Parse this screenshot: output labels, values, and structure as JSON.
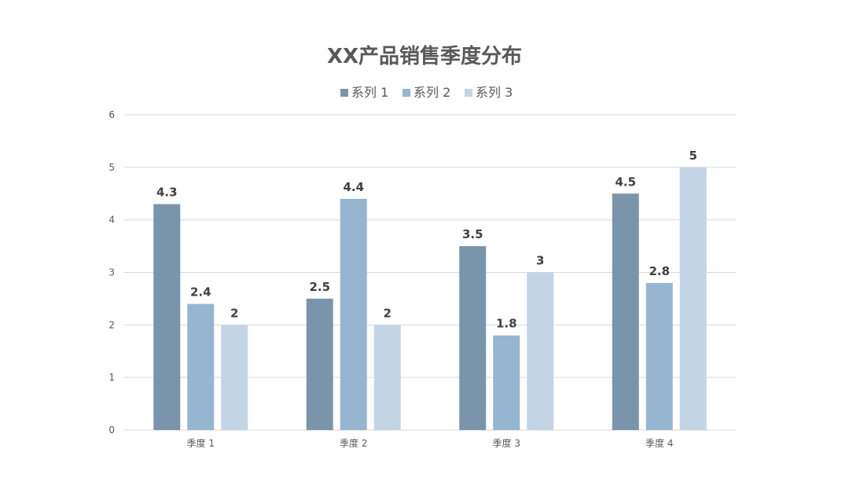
{
  "chart_data": {
    "type": "bar",
    "title": "XX产品销售季度分布",
    "categories": [
      "季度 1",
      "季度 2",
      "季度 3",
      "季度 4"
    ],
    "series": [
      {
        "name": "系列 1",
        "values": [
          4.3,
          2.5,
          3.5,
          4.5
        ],
        "color": "#7a95ab"
      },
      {
        "name": "系列 2",
        "values": [
          2.4,
          4.4,
          1.8,
          2.8
        ],
        "color": "#96b5d1"
      },
      {
        "name": "系列 3",
        "values": [
          2,
          2,
          3,
          5
        ],
        "color": "#c3d4e5"
      }
    ],
    "ylim": [
      0,
      6
    ],
    "yticks": [
      0,
      1,
      2,
      3,
      4,
      5,
      6
    ],
    "xlabel": "",
    "ylabel": "",
    "grid": true,
    "legend_position": "top",
    "data_labels": true
  }
}
